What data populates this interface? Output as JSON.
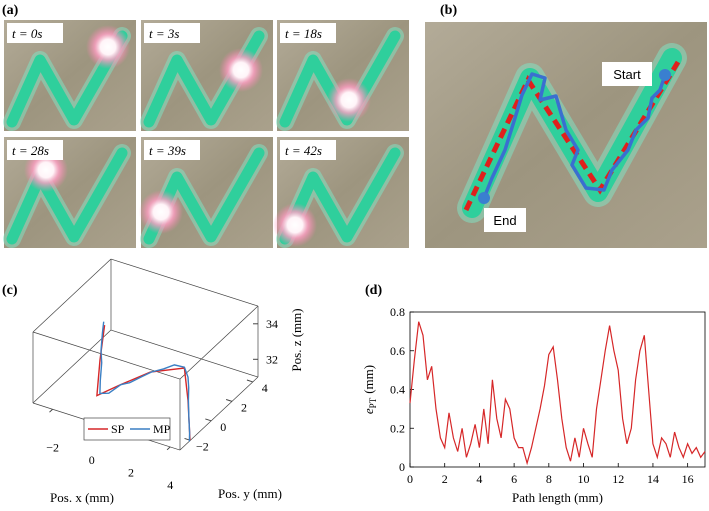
{
  "panels": {
    "a": {
      "label": "(a)",
      "frames": [
        "t = 0s",
        "t = 3s",
        "t = 18s",
        "t = 28s",
        "t = 39s",
        "t = 42s"
      ]
    },
    "b": {
      "label": "(b)",
      "start": "Start",
      "end": "End"
    },
    "c": {
      "label": "(c)"
    },
    "d": {
      "label": "(d)"
    }
  },
  "chart_data": [
    {
      "type": "line3d",
      "xlabel": "Pos. x (mm)",
      "ylabel": "Pos. y (mm)",
      "zlabel": "Pos. z (mm)",
      "xlim": [
        -3,
        4.5
      ],
      "ylim": [
        -3,
        4.5
      ],
      "zlim": [
        31,
        35
      ],
      "xticks": [
        {
          "value": -2,
          "label": "−2"
        },
        0,
        2,
        4
      ],
      "yticks": [
        {
          "value": -2,
          "label": "−2"
        },
        0,
        2,
        4
      ],
      "zticks": [
        32,
        34
      ],
      "series": [
        {
          "name": "SP",
          "color": "#d62728",
          "x": [
            -2,
            -1.44,
            -0.8,
            0.1,
            1.4,
            2.6,
            3.58,
            4.48
          ],
          "y": [
            2,
            0.5,
            -1,
            -0.5,
            0,
            1,
            -0.5,
            -2
          ],
          "z": [
            33,
            32.06,
            31.1,
            31.74,
            32.65,
            32.76,
            32.1,
            31.0
          ]
        },
        {
          "name": "MP",
          "color": "#3a7fc4",
          "x": [
            -2.1,
            -1.9,
            -1.6,
            -1.3,
            -1.0,
            -0.7,
            -0.3,
            0.1,
            0.5,
            1.0,
            1.4,
            1.8,
            2.2,
            2.6,
            3.0,
            3.3,
            3.6,
            4.0,
            4.3,
            4.5
          ],
          "y": [
            2.1,
            1.6,
            0.9,
            0.4,
            -0.3,
            -0.9,
            -0.8,
            -0.4,
            -0.3,
            -0.1,
            0.1,
            0.5,
            0.8,
            1.0,
            0.6,
            0.1,
            -0.5,
            -1.2,
            -1.7,
            -2.1
          ],
          "z": [
            33.1,
            32.8,
            32.3,
            32.0,
            31.5,
            31.2,
            31.3,
            31.7,
            31.9,
            32.3,
            32.6,
            32.7,
            32.9,
            32.8,
            32.6,
            32.4,
            32.1,
            31.6,
            31.2,
            31.0
          ]
        }
      ]
    },
    {
      "type": "line",
      "xlabel": "Path length (mm)",
      "ylabel": {
        "symbol": "e",
        "subscript": "PT",
        "unit": "(mm)"
      },
      "color": "#d62728",
      "xlim": [
        0,
        17
      ],
      "ylim": [
        0,
        0.8
      ],
      "xticks": [
        0,
        2,
        4,
        6,
        8,
        10,
        12,
        14,
        16
      ],
      "yticks": [
        0,
        0.2,
        0.4,
        0.6,
        0.8
      ],
      "x": [
        0,
        0.25,
        0.5,
        0.75,
        1,
        1.25,
        1.5,
        1.75,
        2,
        2.25,
        2.5,
        2.75,
        3,
        3.25,
        3.5,
        3.75,
        4,
        4.25,
        4.5,
        4.75,
        5,
        5.25,
        5.5,
        5.75,
        6,
        6.25,
        6.5,
        6.75,
        7,
        7.25,
        7.5,
        7.75,
        8,
        8.25,
        8.5,
        8.75,
        9,
        9.25,
        9.5,
        9.75,
        10,
        10.25,
        10.5,
        10.75,
        11,
        11.25,
        11.5,
        11.75,
        12,
        12.25,
        12.5,
        12.75,
        13,
        13.25,
        13.5,
        13.75,
        14,
        14.25,
        14.5,
        14.75,
        15,
        15.25,
        15.5,
        15.75,
        16,
        16.25,
        16.5,
        16.75,
        17
      ],
      "values": [
        0.33,
        0.55,
        0.75,
        0.68,
        0.45,
        0.52,
        0.3,
        0.15,
        0.1,
        0.28,
        0.15,
        0.08,
        0.2,
        0.05,
        0.12,
        0.22,
        0.1,
        0.3,
        0.12,
        0.45,
        0.25,
        0.15,
        0.35,
        0.3,
        0.15,
        0.1,
        0.1,
        0.02,
        0.1,
        0.2,
        0.3,
        0.42,
        0.58,
        0.62,
        0.45,
        0.25,
        0.1,
        0.03,
        0.15,
        0.05,
        0.2,
        0.12,
        0.05,
        0.3,
        0.45,
        0.6,
        0.73,
        0.6,
        0.5,
        0.25,
        0.12,
        0.2,
        0.45,
        0.6,
        0.68,
        0.4,
        0.12,
        0.05,
        0.15,
        0.12,
        0.05,
        0.18,
        0.1,
        0.05,
        0.12,
        0.07,
        0.1,
        0.05,
        0.08
      ]
    }
  ]
}
